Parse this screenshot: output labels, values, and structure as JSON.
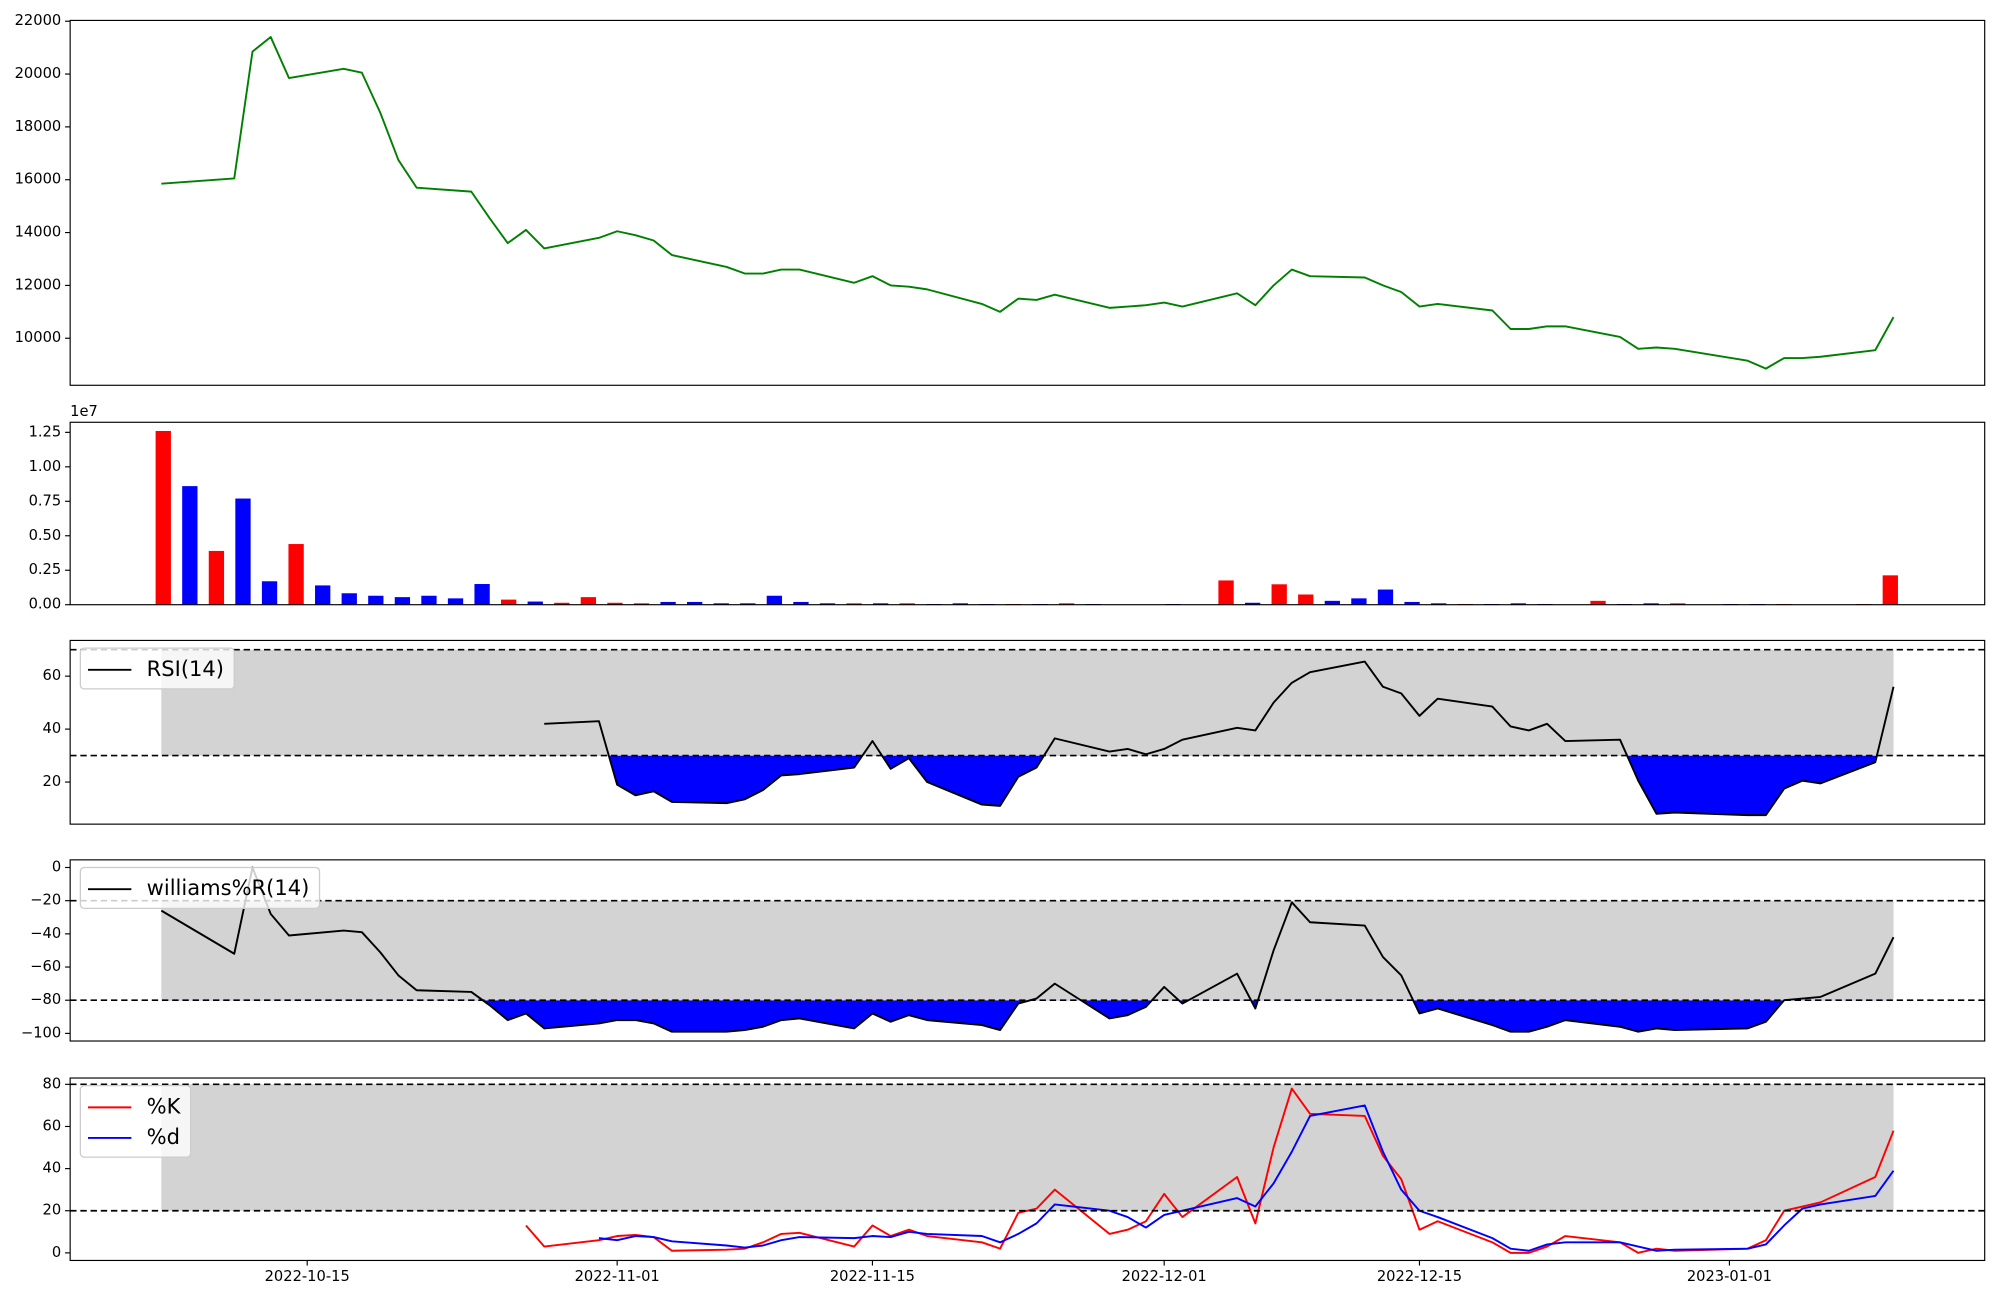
{
  "chart_data": [
    {
      "type": "line",
      "x": [
        "2022-10-07",
        "2022-10-11",
        "2022-10-12",
        "2022-10-13",
        "2022-10-14",
        "2022-10-17",
        "2022-10-18",
        "2022-10-19",
        "2022-10-20",
        "2022-10-21",
        "2022-10-24",
        "2022-10-25",
        "2022-10-26",
        "2022-10-27",
        "2022-10-28",
        "2022-10-31",
        "2022-11-01",
        "2022-11-02",
        "2022-11-03",
        "2022-11-04",
        "2022-11-07",
        "2022-11-08",
        "2022-11-09",
        "2022-11-10",
        "2022-11-11",
        "2022-11-14",
        "2022-11-15",
        "2022-11-16",
        "2022-11-17",
        "2022-11-18",
        "2022-11-21",
        "2022-11-22",
        "2022-11-23",
        "2022-11-24",
        "2022-11-25",
        "2022-11-28",
        "2022-11-29",
        "2022-11-30",
        "2022-12-01",
        "2022-12-02",
        "2022-12-05",
        "2022-12-06",
        "2022-12-07",
        "2022-12-08",
        "2022-12-09",
        "2022-12-12",
        "2022-12-13",
        "2022-12-14",
        "2022-12-15",
        "2022-12-16",
        "2022-12-19",
        "2022-12-20",
        "2022-12-21",
        "2022-12-22",
        "2022-12-23",
        "2022-12-26",
        "2022-12-27",
        "2022-12-28",
        "2022-12-29",
        "2023-01-02",
        "2023-01-03",
        "2023-01-04",
        "2023-01-05",
        "2023-01-06",
        "2023-01-09",
        "2023-01-10"
      ],
      "series": [
        {
          "color": "green",
          "values": [
            15850,
            16050,
            20850,
            21400,
            19850,
            20200,
            20050,
            18550,
            16750,
            15700,
            15550,
            14550,
            13600,
            14100,
            13400,
            13800,
            14050,
            13900,
            13700,
            13150,
            12700,
            12450,
            12450,
            12600,
            12600,
            12100,
            12350,
            12000,
            11950,
            11850,
            11300,
            11000,
            11500,
            11450,
            11650,
            11150,
            11200,
            11250,
            11350,
            11200,
            11700,
            11250,
            12000,
            12600,
            12350,
            12300,
            12000,
            11750,
            11200,
            11300,
            11050,
            10350,
            10350,
            10450,
            10450,
            10050,
            9600,
            9650,
            9600,
            9150,
            8850,
            9250,
            9250,
            9300,
            9550,
            10800
          ]
        }
      ],
      "xlim": [
        "2022-10-02",
        "2023-01-15"
      ],
      "ylim": [
        8220,
        22030
      ],
      "yticks": [
        10000,
        12000,
        14000,
        16000,
        18000,
        20000,
        22000
      ]
    },
    {
      "type": "bar",
      "values": [
        1.26,
        0.86,
        0.39,
        0.77,
        0.17,
        0.44,
        0.14,
        0.083,
        0.065,
        0.055,
        0.065,
        0.046,
        0.15,
        0.037,
        0.023,
        0.014,
        0.055,
        0.014,
        0.01,
        0.02,
        0.02,
        0.01,
        0.01,
        0.065,
        0.02,
        0.01,
        0.01,
        0.01,
        0.01,
        0.005,
        0.01,
        0.005,
        0.005,
        0.005,
        0.01,
        0.005,
        0,
        0,
        0.005,
        0,
        0.176,
        0.014,
        0.148,
        0.074,
        0.028,
        0.046,
        0.11,
        0.02,
        0.01,
        0.005,
        0.005,
        0.01,
        0.005,
        0,
        0.028,
        0.005,
        0.01,
        0.01,
        0,
        0.005,
        0.005,
        0.005,
        0,
        0,
        0.005,
        0.213
      ],
      "colors": [
        "red",
        "blue",
        "red",
        "blue",
        "blue",
        "red",
        "blue",
        "blue",
        "blue",
        "blue",
        "blue",
        "blue",
        "blue",
        "red",
        "blue",
        "red",
        "red",
        "red",
        "red",
        "blue",
        "blue",
        "blue",
        "blue",
        "blue",
        "blue",
        "blue",
        "red",
        "blue",
        "red",
        "blue",
        "blue",
        "blue",
        "red",
        "blue",
        "red",
        "blue",
        "blue",
        "blue",
        "blue",
        "blue",
        "red",
        "blue",
        "red",
        "red",
        "blue",
        "blue",
        "blue",
        "blue",
        "blue",
        "red",
        "blue",
        "blue",
        "blue",
        "blue",
        "red",
        "blue",
        "blue",
        "red",
        "blue",
        "blue",
        "blue",
        "red",
        "blue",
        "blue",
        "red",
        "red"
      ],
      "ylim": [
        0,
        1.323
      ],
      "yticks": [
        {
          "value": 0,
          "label": "0.00"
        },
        0.25,
        {
          "value": 0.5,
          "label": "0.50"
        },
        0.75,
        {
          "value": 1,
          "label": "1.00"
        },
        1.25
      ],
      "offset_label": "1e7"
    },
    {
      "type": "line",
      "x": [
        "2022-10-07",
        "2022-10-11",
        "2022-10-12",
        "2022-10-13",
        "2022-10-14",
        "2022-10-17",
        "2022-10-18",
        "2022-10-19",
        "2022-10-20",
        "2022-10-21",
        "2022-10-24",
        "2022-10-25",
        "2022-10-26",
        "2022-10-27",
        "2022-10-28",
        "2022-10-31",
        "2022-11-01",
        "2022-11-02",
        "2022-11-03",
        "2022-11-04",
        "2022-11-07",
        "2022-11-08",
        "2022-11-09",
        "2022-11-10",
        "2022-11-11",
        "2022-11-14",
        "2022-11-15",
        "2022-11-16",
        "2022-11-17",
        "2022-11-18",
        "2022-11-21",
        "2022-11-22",
        "2022-11-23",
        "2022-11-24",
        "2022-11-25",
        "2022-11-28",
        "2022-11-29",
        "2022-11-30",
        "2022-12-01",
        "2022-12-02",
        "2022-12-05",
        "2022-12-06",
        "2022-12-07",
        "2022-12-08",
        "2022-12-09",
        "2022-12-12",
        "2022-12-13",
        "2022-12-14",
        "2022-12-15",
        "2022-12-16",
        "2022-12-19",
        "2022-12-20",
        "2022-12-21",
        "2022-12-22",
        "2022-12-23",
        "2022-12-26",
        "2022-12-27",
        "2022-12-28",
        "2022-12-29",
        "2023-01-02",
        "2023-01-03",
        "2023-01-04",
        "2023-01-05",
        "2023-01-06",
        "2023-01-09",
        "2023-01-10"
      ],
      "series": [
        {
          "name": "RSI(14)",
          "color": "black",
          "values": [
            null,
            null,
            null,
            null,
            null,
            null,
            null,
            null,
            null,
            null,
            null,
            null,
            null,
            null,
            42,
            43,
            19,
            15,
            16.5,
            12.5,
            12,
            13.5,
            17,
            22.5,
            23,
            25.5,
            35.5,
            25,
            29,
            20,
            11.5,
            11,
            22,
            25.5,
            36.5,
            31.5,
            32.5,
            30.5,
            32.5,
            36,
            40.5,
            39.5,
            50,
            57.5,
            61.5,
            65.5,
            56,
            53.5,
            45,
            51.5,
            48.5,
            41,
            39.5,
            42,
            35.5,
            36,
            20.5,
            8,
            8.5,
            7.5,
            7.5,
            17.5,
            20.5,
            19.5,
            27.5,
            56
          ]
        }
      ],
      "levels": [
        30,
        70
      ],
      "band_color": "lightgray",
      "fill_color": "blue",
      "legend": "upper left",
      "xlim": [
        "2022-10-02",
        "2023-01-15"
      ],
      "ylim": [
        4.1,
        73.5
      ],
      "yticks": [
        20,
        40,
        60
      ]
    },
    {
      "type": "line",
      "x": [
        "2022-10-07",
        "2022-10-11",
        "2022-10-12",
        "2022-10-13",
        "2022-10-14",
        "2022-10-17",
        "2022-10-18",
        "2022-10-19",
        "2022-10-20",
        "2022-10-21",
        "2022-10-24",
        "2022-10-25",
        "2022-10-26",
        "2022-10-27",
        "2022-10-28",
        "2022-10-31",
        "2022-11-01",
        "2022-11-02",
        "2022-11-03",
        "2022-11-04",
        "2022-11-07",
        "2022-11-08",
        "2022-11-09",
        "2022-11-10",
        "2022-11-11",
        "2022-11-14",
        "2022-11-15",
        "2022-11-16",
        "2022-11-17",
        "2022-11-18",
        "2022-11-21",
        "2022-11-22",
        "2022-11-23",
        "2022-11-24",
        "2022-11-25",
        "2022-11-28",
        "2022-11-29",
        "2022-11-30",
        "2022-12-01",
        "2022-12-02",
        "2022-12-05",
        "2022-12-06",
        "2022-12-07",
        "2022-12-08",
        "2022-12-09",
        "2022-12-12",
        "2022-12-13",
        "2022-12-14",
        "2022-12-15",
        "2022-12-16",
        "2022-12-19",
        "2022-12-20",
        "2022-12-21",
        "2022-12-22",
        "2022-12-23",
        "2022-12-26",
        "2022-12-27",
        "2022-12-28",
        "2022-12-29",
        "2023-01-02",
        "2023-01-03",
        "2023-01-04",
        "2023-01-05",
        "2023-01-06",
        "2023-01-09",
        "2023-01-10"
      ],
      "series": [
        {
          "name": "williams%R(14)",
          "color": "black",
          "values": [
            -26,
            -52,
            0,
            -28,
            -41,
            -38,
            -39,
            -51,
            -65,
            -74,
            -75,
            -83,
            -92,
            -88,
            -97,
            -94,
            -92,
            -92,
            -94,
            -99,
            -99,
            -98,
            -96,
            -92,
            -91,
            -97,
            -88,
            -93,
            -89,
            -92,
            -95,
            -98,
            -82,
            -79,
            -70,
            -91,
            -89,
            -84,
            -72,
            -82,
            -64,
            -85,
            -50,
            -21,
            -33,
            -35,
            -54,
            -65,
            -88,
            -85,
            -95,
            -99,
            -99,
            -96,
            -92,
            -96,
            -99,
            -97,
            -98,
            -97,
            -93,
            -80,
            -79,
            -78,
            -64,
            -42
          ]
        }
      ],
      "levels": [
        -80,
        -20
      ],
      "band_color": "lightgray",
      "fill_color": "blue",
      "legend": "upper left",
      "xlim": [
        "2022-10-02",
        "2023-01-15"
      ],
      "ylim": [
        -104.6,
        4.6
      ],
      "yticks": [
        {
          "value": -100,
          "label": "−100"
        },
        {
          "value": -80,
          "label": "−80"
        },
        {
          "value": -60,
          "label": "−60"
        },
        {
          "value": -40,
          "label": "−40"
        },
        {
          "value": -20,
          "label": "−20"
        },
        0
      ]
    },
    {
      "type": "line",
      "x": [
        "2022-10-07",
        "2022-10-11",
        "2022-10-12",
        "2022-10-13",
        "2022-10-14",
        "2022-10-17",
        "2022-10-18",
        "2022-10-19",
        "2022-10-20",
        "2022-10-21",
        "2022-10-24",
        "2022-10-25",
        "2022-10-26",
        "2022-10-27",
        "2022-10-28",
        "2022-10-31",
        "2022-11-01",
        "2022-11-02",
        "2022-11-03",
        "2022-11-04",
        "2022-11-07",
        "2022-11-08",
        "2022-11-09",
        "2022-11-10",
        "2022-11-11",
        "2022-11-14",
        "2022-11-15",
        "2022-11-16",
        "2022-11-17",
        "2022-11-18",
        "2022-11-21",
        "2022-11-22",
        "2022-11-23",
        "2022-11-24",
        "2022-11-25",
        "2022-11-28",
        "2022-11-29",
        "2022-11-30",
        "2022-12-01",
        "2022-12-02",
        "2022-12-05",
        "2022-12-06",
        "2022-12-07",
        "2022-12-08",
        "2022-12-09",
        "2022-12-12",
        "2022-12-13",
        "2022-12-14",
        "2022-12-15",
        "2022-12-16",
        "2022-12-19",
        "2022-12-20",
        "2022-12-21",
        "2022-12-22",
        "2022-12-23",
        "2022-12-26",
        "2022-12-27",
        "2022-12-28",
        "2022-12-29",
        "2023-01-02",
        "2023-01-03",
        "2023-01-04",
        "2023-01-05",
        "2023-01-06",
        "2023-01-09",
        "2023-01-10"
      ],
      "series": [
        {
          "name": "%K",
          "color": "red",
          "values": [
            null,
            null,
            null,
            null,
            null,
            null,
            null,
            null,
            null,
            null,
            null,
            null,
            null,
            13,
            3,
            6,
            8,
            8.5,
            7.5,
            1,
            1.5,
            2,
            5,
            9,
            9.5,
            3,
            13,
            8,
            11,
            8,
            5,
            2,
            19,
            21,
            30,
            9,
            11,
            15,
            28,
            17,
            36,
            14,
            50,
            78,
            66,
            65,
            46,
            35,
            11,
            15,
            5,
            0,
            0,
            3,
            8,
            5,
            0,
            2,
            1,
            2,
            6,
            20,
            22,
            24,
            36,
            58
          ]
        },
        {
          "name": "%d",
          "color": "blue",
          "values": [
            null,
            null,
            null,
            null,
            null,
            null,
            null,
            null,
            null,
            null,
            null,
            null,
            null,
            null,
            null,
            7,
            6,
            8,
            7.5,
            5.5,
            3.5,
            2.5,
            3.5,
            6,
            7.5,
            7,
            8,
            7.5,
            10,
            9,
            8,
            5,
            9,
            14,
            23,
            20,
            17,
            12,
            18,
            20,
            26,
            22,
            33,
            48,
            65,
            70,
            48,
            30,
            20,
            17,
            7,
            2,
            1,
            4,
            5,
            5,
            3,
            1,
            1.5,
            2,
            4,
            13,
            21,
            23,
            27,
            39
          ]
        }
      ],
      "levels": [
        20,
        80
      ],
      "band_color": "lightgray",
      "legend": "upper left",
      "xlim": [
        "2022-10-02",
        "2023-01-15"
      ],
      "ylim": [
        -3.6,
        83
      ],
      "yticks": [
        0,
        20,
        40,
        60,
        80
      ],
      "xticks": [
        "2022-10-15",
        "2022-11-01",
        "2022-11-15",
        "2022-12-01",
        "2022-12-15",
        "2023-01-01"
      ]
    }
  ]
}
